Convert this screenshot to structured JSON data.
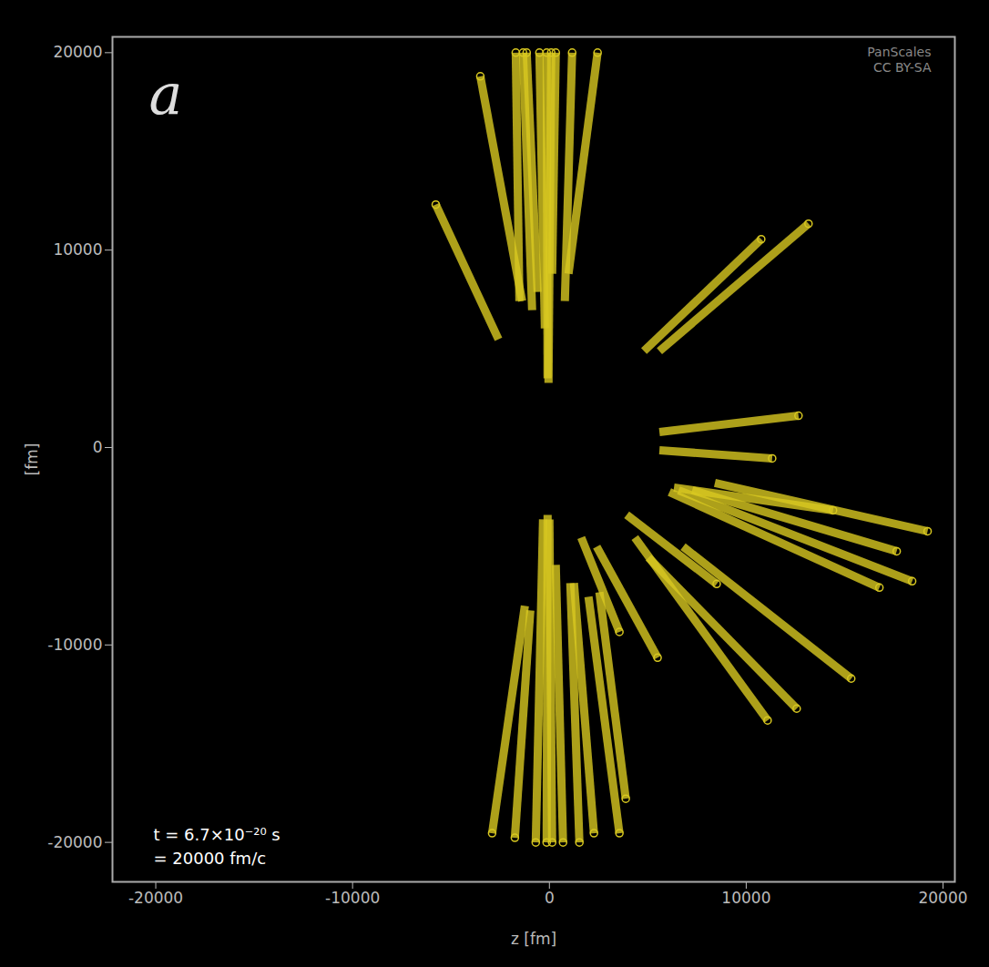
{
  "chart_data": {
    "type": "line",
    "panel_label": "a",
    "credit": [
      "PanScales",
      "CC BY-SA"
    ],
    "annotations": [
      "t = 6.7×10⁻²⁰ s",
      "= 20000 fm/c"
    ],
    "xlabel": "z [fm]",
    "ylabel": "[fm]",
    "xlim": [
      -22200,
      20600
    ],
    "ylim": [
      -22000,
      20800
    ],
    "xticks": [
      -20000,
      -10000,
      0,
      10000,
      20000
    ],
    "yticks": [
      -20000,
      -10000,
      0,
      10000,
      20000
    ],
    "color": "#d8c820",
    "marker": "circle",
    "series": [
      {
        "x": [
          -3510,
          -1386
        ],
        "values": [
          18800,
          7419
        ]
      },
      {
        "x": [
          -5774,
          -2587
        ],
        "values": [
          12304,
          5484
        ]
      },
      {
        "x": [
          -1709,
          -1524
        ],
        "values": [
          20000,
          7419
        ]
      },
      {
        "x": [
          -1155,
          -600
        ],
        "values": [
          20000,
          7880
        ]
      },
      {
        "x": [
          -508,
          -231
        ],
        "values": [
          20000,
          6036
        ]
      },
      {
        "x": [
          -139,
          -92
        ],
        "values": [
          20000,
          3502
        ]
      },
      {
        "x": [
          92,
          -46
        ],
        "values": [
          20000,
          3272
        ]
      },
      {
        "x": [
          323,
          139
        ],
        "values": [
          20000,
          8801
        ]
      },
      {
        "x": [
          1155,
          785
        ],
        "values": [
          20000,
          7419
        ]
      },
      {
        "x": [
          2448,
          970
        ],
        "values": [
          20000,
          8801
        ]
      },
      {
        "x": [
          -1340,
          -878
        ],
        "values": [
          20000,
          6958
        ]
      },
      {
        "x": [
          10762,
          4804
        ],
        "values": [
          10552,
          4884
        ]
      },
      {
        "x": [
          13164,
          5589
        ],
        "values": [
          11336,
          4884
        ]
      },
      {
        "x": [
          12656,
          5589
        ],
        "values": [
          1613,
          783
        ]
      },
      {
        "x": [
          11317,
          5589
        ],
        "values": [
          -553,
          -138
        ]
      },
      {
        "x": [
          19215,
          8407
        ],
        "values": [
          -4239,
          -1797
        ]
      },
      {
        "x": [
          17645,
          7252
        ],
        "values": [
          -5253,
          -2166
        ]
      },
      {
        "x": [
          18430,
          6559
        ],
        "values": [
          -6774,
          -2166
        ]
      },
      {
        "x": [
          16767,
          6097
        ],
        "values": [
          -7096,
          -2258
        ]
      },
      {
        "x": [
          15335,
          6790
        ],
        "values": [
          -11704,
          -5023
        ]
      },
      {
        "x": [
          12564,
          5035
        ],
        "values": [
          -13225,
          -5576
        ]
      },
      {
        "x": [
          11086,
          4342
        ],
        "values": [
          -13824,
          -4562
        ]
      },
      {
        "x": [
          8499,
          3926
        ],
        "values": [
          -6912,
          -3410
        ]
      },
      {
        "x": [
          5497,
          2402
        ],
        "values": [
          -10644,
          -5023
        ]
      },
      {
        "x": [
          3557,
          1617
        ],
        "values": [
          -9340,
          -4562
        ]
      },
      {
        "x": [
          14411,
          6328
        ],
        "values": [
          -3180,
          -2028
        ]
      },
      {
        "x": [
          -2910,
          -1247
        ],
        "values": [
          -19538,
          -8018
        ]
      },
      {
        "x": [
          -1755,
          -970
        ],
        "values": [
          -19768,
          -8248
        ]
      },
      {
        "x": [
          -693,
          -323
        ],
        "values": [
          -20000,
          -3640
        ]
      },
      {
        "x": [
          -139,
          -92
        ],
        "values": [
          -20000,
          -3410
        ]
      },
      {
        "x": [
          139,
          0
        ],
        "values": [
          -20000,
          -3640
        ]
      },
      {
        "x": [
          693,
          323
        ],
        "values": [
          -20000,
          -5944
        ]
      },
      {
        "x": [
          1524,
          1062
        ],
        "values": [
          -20000,
          -6866
        ]
      },
      {
        "x": [
          2263,
          1247
        ],
        "values": [
          -19538,
          -6866
        ]
      },
      {
        "x": [
          3880,
          2540
        ],
        "values": [
          -17787,
          -7327
        ]
      },
      {
        "x": [
          3557,
          1986
        ],
        "values": [
          -19538,
          -7557
        ]
      }
    ]
  }
}
